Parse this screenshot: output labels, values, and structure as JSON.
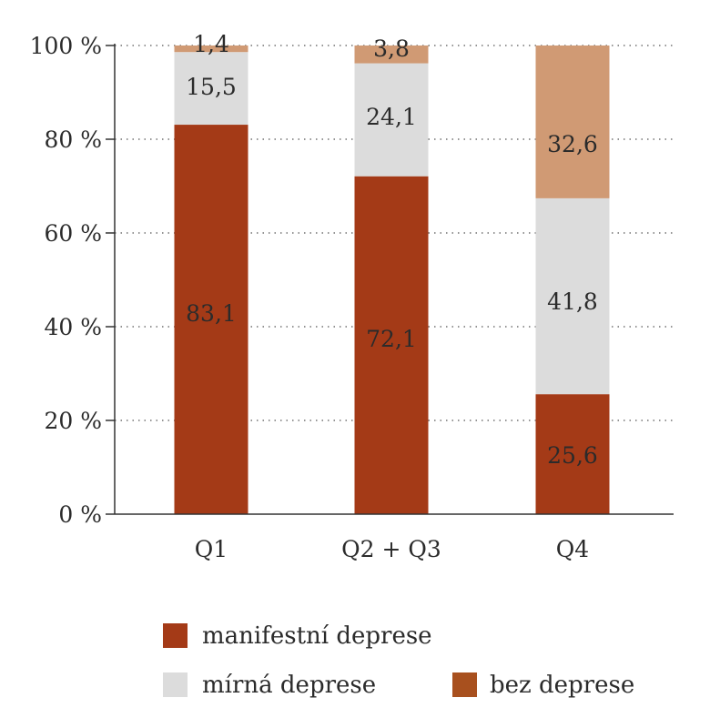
{
  "chart_data": {
    "type": "bar",
    "stacked": true,
    "categories": [
      "Q1",
      "Q2 + Q3",
      "Q4"
    ],
    "series": [
      {
        "name": "manifestní deprese",
        "values": [
          83.1,
          72.1,
          25.6
        ],
        "labels": [
          "83,1",
          "72,1",
          "25,6"
        ],
        "color": "#A43A17"
      },
      {
        "name": "mírná deprese",
        "values": [
          15.5,
          24.1,
          41.8
        ],
        "labels": [
          "15,5",
          "24,1",
          "41,8"
        ],
        "color": "#DCDCDC"
      },
      {
        "name": "bez deprese",
        "values": [
          1.4,
          3.8,
          32.6
        ],
        "labels": [
          "1,4",
          "3,8",
          "32,6"
        ],
        "color": "#D09A74"
      }
    ],
    "legend": [
      {
        "label": "manifestní deprese",
        "color": "#A43A17"
      },
      {
        "label": "mírná deprese",
        "color": "#DCDCDC"
      },
      {
        "label": "bez deprese",
        "color": "#A8501E"
      }
    ],
    "yticks": [
      0,
      20,
      40,
      60,
      80,
      100
    ],
    "ytick_labels": [
      "0 %",
      "20 %",
      "40 %",
      "60 %",
      "80 %",
      "100 %"
    ],
    "ylim": [
      0,
      100
    ],
    "grid": "horizontal-dotted",
    "legend_position": "bottom",
    "title": "",
    "xlabel": "",
    "ylabel": ""
  }
}
